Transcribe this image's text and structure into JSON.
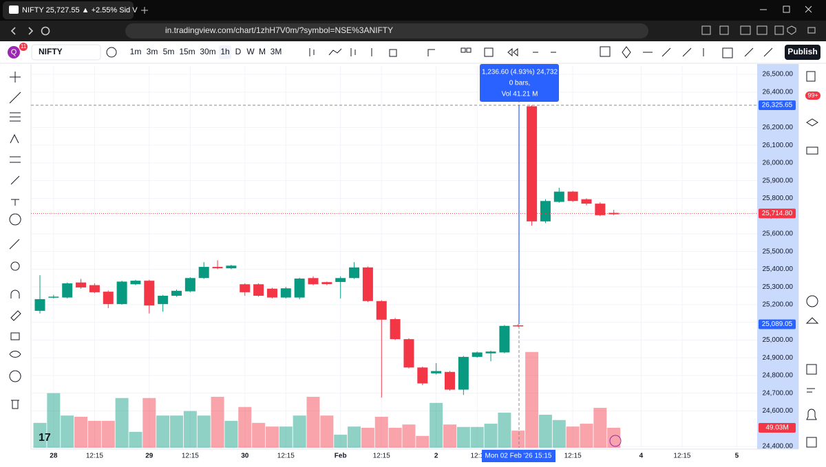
{
  "browser": {
    "tab_title": "NIFTY 25,727.55 ▲ +2.55% Sid V",
    "url": "in.tradingview.com/chart/1zhH7V0m/?symbol=NSE%3ANIFTY"
  },
  "toolbar": {
    "avatar": "Q",
    "notifications": "11",
    "symbol": "NIFTY",
    "intervals": [
      "1m",
      "3m",
      "5m",
      "15m",
      "30m",
      "1h",
      "D",
      "W",
      "M",
      "3M"
    ],
    "publish": "Publish"
  },
  "sidebar": {
    "badge": "99+"
  },
  "tooltip": [
    "1,236.60 (4.93%) 24,732",
    "0 bars,",
    "Vol 41.21 M"
  ],
  "crosshair_time": "Mon 02 Feb '26  15:15",
  "chart": {
    "type": "candlestick",
    "up_color": "#089981",
    "down_color": "#f23645",
    "open": [
      25165,
      25240,
      25240,
      25325,
      25310,
      25273,
      25203,
      25315,
      25335,
      25203,
      25250,
      25275,
      25350,
      25413,
      25405,
      25315,
      25315,
      25290,
      25240,
      25240,
      25350,
      25327,
      25328,
      25350,
      25410,
      25220,
      25118,
      25005,
      24845,
      24812,
      24820,
      24720,
      24905,
      24925,
      24930,
      25083,
      26320,
      25670,
      25780,
      25838,
      25795,
      25770,
      25718
    ],
    "high": [
      25366,
      25255,
      25325,
      25345,
      25320,
      25280,
      25335,
      25340,
      25340,
      25255,
      25285,
      25355,
      25440,
      25450,
      25425,
      25320,
      25320,
      25295,
      25300,
      25352,
      25360,
      25330,
      25360,
      25440,
      25415,
      25225,
      25125,
      25010,
      24850,
      24870,
      24825,
      24910,
      24935,
      24940,
      25085,
      25090,
      26325,
      25795,
      25860,
      25842,
      25800,
      25778,
      25735
    ],
    "low": [
      25150,
      25235,
      25235,
      25290,
      25265,
      25180,
      25200,
      25310,
      25150,
      25160,
      25245,
      25270,
      25345,
      25400,
      25400,
      25250,
      25245,
      25235,
      25235,
      25230,
      25310,
      25310,
      25235,
      25345,
      25215,
      24675,
      25000,
      24840,
      24745,
      24805,
      24715,
      24690,
      24900,
      24880,
      24925,
      25075,
      25645,
      25660,
      25775,
      25780,
      25760,
      25700,
      25705
    ],
    "close": [
      25231,
      25245,
      25320,
      25297,
      25270,
      25203,
      25330,
      25335,
      25195,
      25250,
      25278,
      25350,
      25413,
      25405,
      25420,
      25270,
      25250,
      25240,
      25292,
      25347,
      25315,
      25316,
      25350,
      25410,
      25220,
      25115,
      25005,
      24845,
      24755,
      24825,
      24720,
      24905,
      24930,
      24935,
      25080,
      25080,
      25670,
      25785,
      25838,
      25785,
      25770,
      25705,
      25710
    ],
    "volume": [
      61,
      134,
      79,
      76,
      66,
      66,
      122,
      39,
      122,
      79,
      79,
      90,
      79,
      125,
      66,
      100,
      61,
      52,
      52,
      79,
      125,
      79,
      32,
      52,
      49,
      76,
      49,
      57,
      29,
      110,
      57,
      51,
      51,
      59,
      86,
      42,
      235,
      81,
      68,
      52,
      59,
      98,
      49.03
    ],
    "time_labels": [
      null,
      "28",
      null,
      null,
      "12:15",
      null,
      null,
      null,
      "29",
      null,
      null,
      "12:15",
      null,
      null,
      null,
      "30",
      null,
      null,
      "12:15",
      null,
      null,
      null,
      "Feb",
      null,
      null,
      "12:15",
      null,
      null,
      null,
      "2",
      null,
      null,
      "12:1",
      null,
      null,
      null,
      null,
      null,
      null,
      "12:15",
      null,
      null,
      null,
      null,
      "4",
      null,
      null,
      "12:15",
      null,
      null,
      null,
      "5"
    ],
    "ylim": [
      24392,
      26547
    ],
    "volume_lim": [
      0,
      270
    ],
    "yticks": [
      {
        "value": 26500,
        "label": "26,500.00"
      },
      {
        "value": 26400,
        "label": "26,400.00"
      },
      {
        "value": 26200,
        "label": "26,200.00"
      },
      {
        "value": 26100,
        "label": "26,100.00"
      },
      {
        "value": 26000,
        "label": "26,000.00"
      },
      {
        "value": 25900,
        "label": "25,900.00"
      },
      {
        "value": 25800,
        "label": "25,800.00"
      },
      {
        "value": 25700,
        "label": "25,700.00"
      },
      {
        "value": 25600,
        "label": "25,600.00"
      },
      {
        "value": 25500,
        "label": "25,500.00"
      },
      {
        "value": 25400,
        "label": "25,400.00"
      },
      {
        "value": 25300,
        "label": "25,300.00"
      },
      {
        "value": 25200,
        "label": "25,200.00"
      },
      {
        "value": 25100,
        "label": "25,100.00"
      },
      {
        "value": 25000,
        "label": "25,000.00"
      },
      {
        "value": 24900,
        "label": "24,900.00"
      },
      {
        "value": 24800,
        "label": "24,800.00"
      },
      {
        "value": 24700,
        "label": "24,700.00"
      },
      {
        "value": 24600,
        "label": "24,600.00"
      },
      {
        "value": 24400,
        "label": "24,400.00"
      }
    ],
    "price_tags": [
      {
        "value": 26325.65,
        "label": "26,325.65",
        "color": "#2962ff"
      },
      {
        "value": 25714.8,
        "label": "25,714.80",
        "color": "#f23645"
      },
      {
        "value": 25089.05,
        "label": "25,089.05",
        "color": "#2962ff"
      }
    ],
    "volume_tag": {
      "value": 49.03,
      "label": "49.03M",
      "color": "#f23645"
    }
  }
}
